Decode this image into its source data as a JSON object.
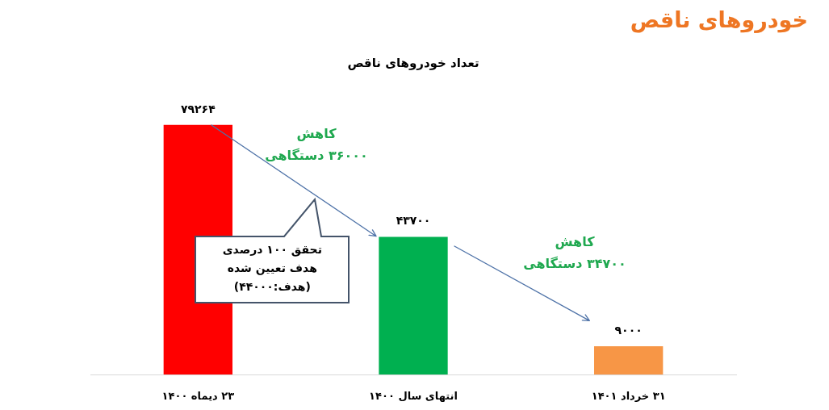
{
  "chart_data": {
    "type": "bar",
    "title": "خودروهای ناقص",
    "subtitle": "تعداد خودروهای ناقص",
    "categories": [
      "۲۳ دیماه ۱۴۰۰",
      "انتهای سال ۱۴۰۰",
      "۳۱ خرداد ۱۴۰۱"
    ],
    "values": [
      79264,
      43700,
      9000
    ],
    "colors": [
      "#ff0000",
      "#00b050",
      "#f79646"
    ],
    "value_labels": [
      "۷۹۲۶۴",
      "۴۳۷۰۰",
      "۹۰۰۰"
    ],
    "annotations": [
      "کاهش\n۳۶۰۰۰ دستگاهی",
      "تحقق ۱۰۰ درصدی\nهدف تعیین شده\n(هدف:۴۴۰۰۰)",
      "کاهش\n۳۴۷۰۰ دستگاهی"
    ],
    "tick_labels": "x",
    "grid": false,
    "legend": false
  }
}
